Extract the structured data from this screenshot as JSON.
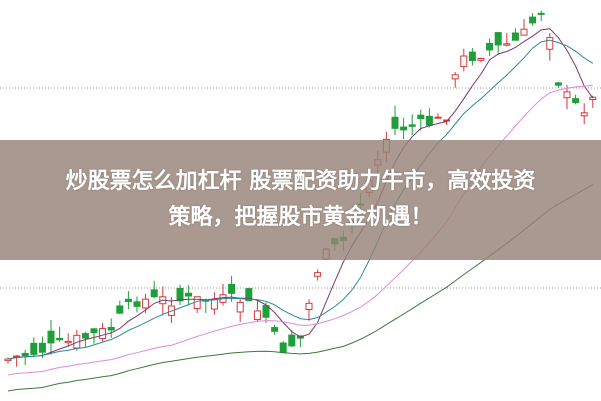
{
  "headline": {
    "line1": "炒股票怎么加杠杆 股票配资助力牛市，高效投资",
    "line2": "策略，把握股市黄金机遇！"
  },
  "colors": {
    "up_candle": "#d23a3a",
    "down_candle": "#1f9e3a",
    "banner": "#96827a"
  }
}
